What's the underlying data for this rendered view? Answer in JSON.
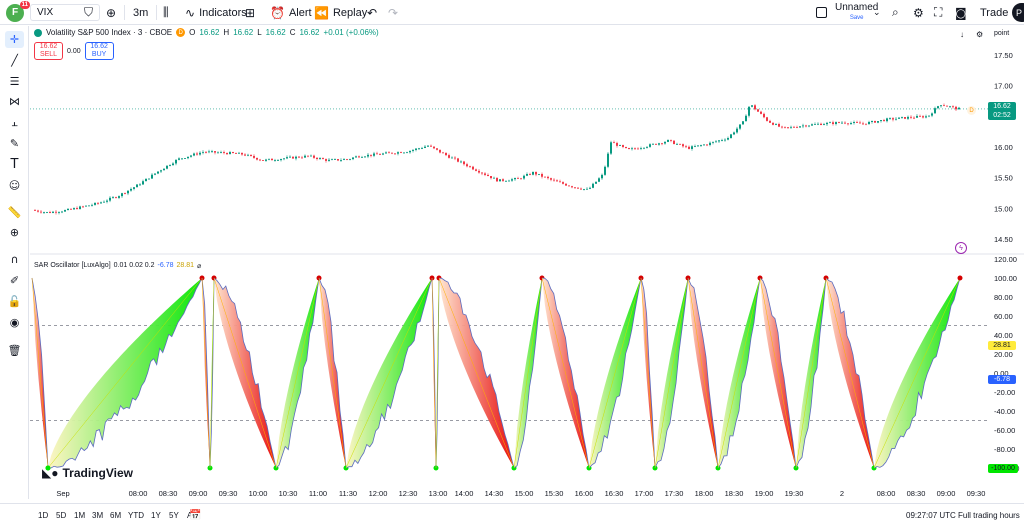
{
  "topbar": {
    "avatar_letter": "F",
    "avatar_badge": "11",
    "symbol": "VIX",
    "interval": "3m",
    "indicators_label": "Indicators",
    "alert_label": "Alert",
    "replay_label": "Replay",
    "layout_name": "Unnamed",
    "layout_status": "Save",
    "trade_label": "Trade",
    "profile_letter": "P"
  },
  "chart": {
    "title": "Volatility S&P 500 Index · 3 · CBOE",
    "badge": "D",
    "open_label": "O",
    "open": "16.62",
    "high_label": "H",
    "high": "16.62",
    "low_label": "L",
    "low": "16.62",
    "close_label": "C",
    "close": "16.62",
    "change": "+0.01 (+0.06%)",
    "sell_price": "16.62",
    "sell_label": "SELL",
    "spread": "0.00",
    "buy_price": "16.62",
    "buy_label": "BUY",
    "scale_mode": "point",
    "last_price": "16.62",
    "countdown": "02:52",
    "price_axis": [
      "17.50",
      "17.00",
      "16.50",
      "16.00",
      "15.50",
      "15.00",
      "14.50"
    ],
    "price_axis_values": [
      17.5,
      17.0,
      16.5,
      16.0,
      15.5,
      15.0,
      14.5
    ]
  },
  "oscillator": {
    "name": "SAR Oscillator [LuxAlgo]",
    "params": "0.01 0.02 0.2",
    "value1": "-6.78",
    "value2": "28.81",
    "value3": "⌀",
    "axis": [
      "120.00",
      "100.00",
      "80.00",
      "60.00",
      "40.00",
      "20.00",
      "0.00",
      "-20.00",
      "-40.00",
      "-60.00",
      "-80.00",
      "-100.00"
    ],
    "axis_values": [
      120,
      100,
      80,
      60,
      40,
      20,
      0,
      -20,
      -40,
      -60,
      -80,
      -100
    ],
    "tag_value2": "28.81",
    "tag_value1": "-6.78",
    "tag_min": "-100.00"
  },
  "time_axis": [
    "Sep",
    "08:00",
    "08:30",
    "09:00",
    "09:30",
    "10:00",
    "10:30",
    "11:00",
    "11:30",
    "12:00",
    "12:30",
    "13:00",
    "14:00",
    "14:30",
    "15:00",
    "15:30",
    "16:00",
    "16:30",
    "17:00",
    "17:30",
    "18:00",
    "18:30",
    "19:00",
    "19:30",
    "2",
    "08:00",
    "08:30",
    "09:00",
    "09:30"
  ],
  "watermark": "TradingView",
  "bottombar": {
    "ranges": [
      "1D",
      "5D",
      "1M",
      "3M",
      "6M",
      "YTD",
      "1Y",
      "5Y",
      "All"
    ],
    "clock": "09:27:07 UTC",
    "session": "Full trading hours"
  },
  "colors": {
    "up": "#089981",
    "down": "#f23645",
    "accent": "#2962ff",
    "osc_bull": "#00e600",
    "osc_bear": "#e60000"
  }
}
